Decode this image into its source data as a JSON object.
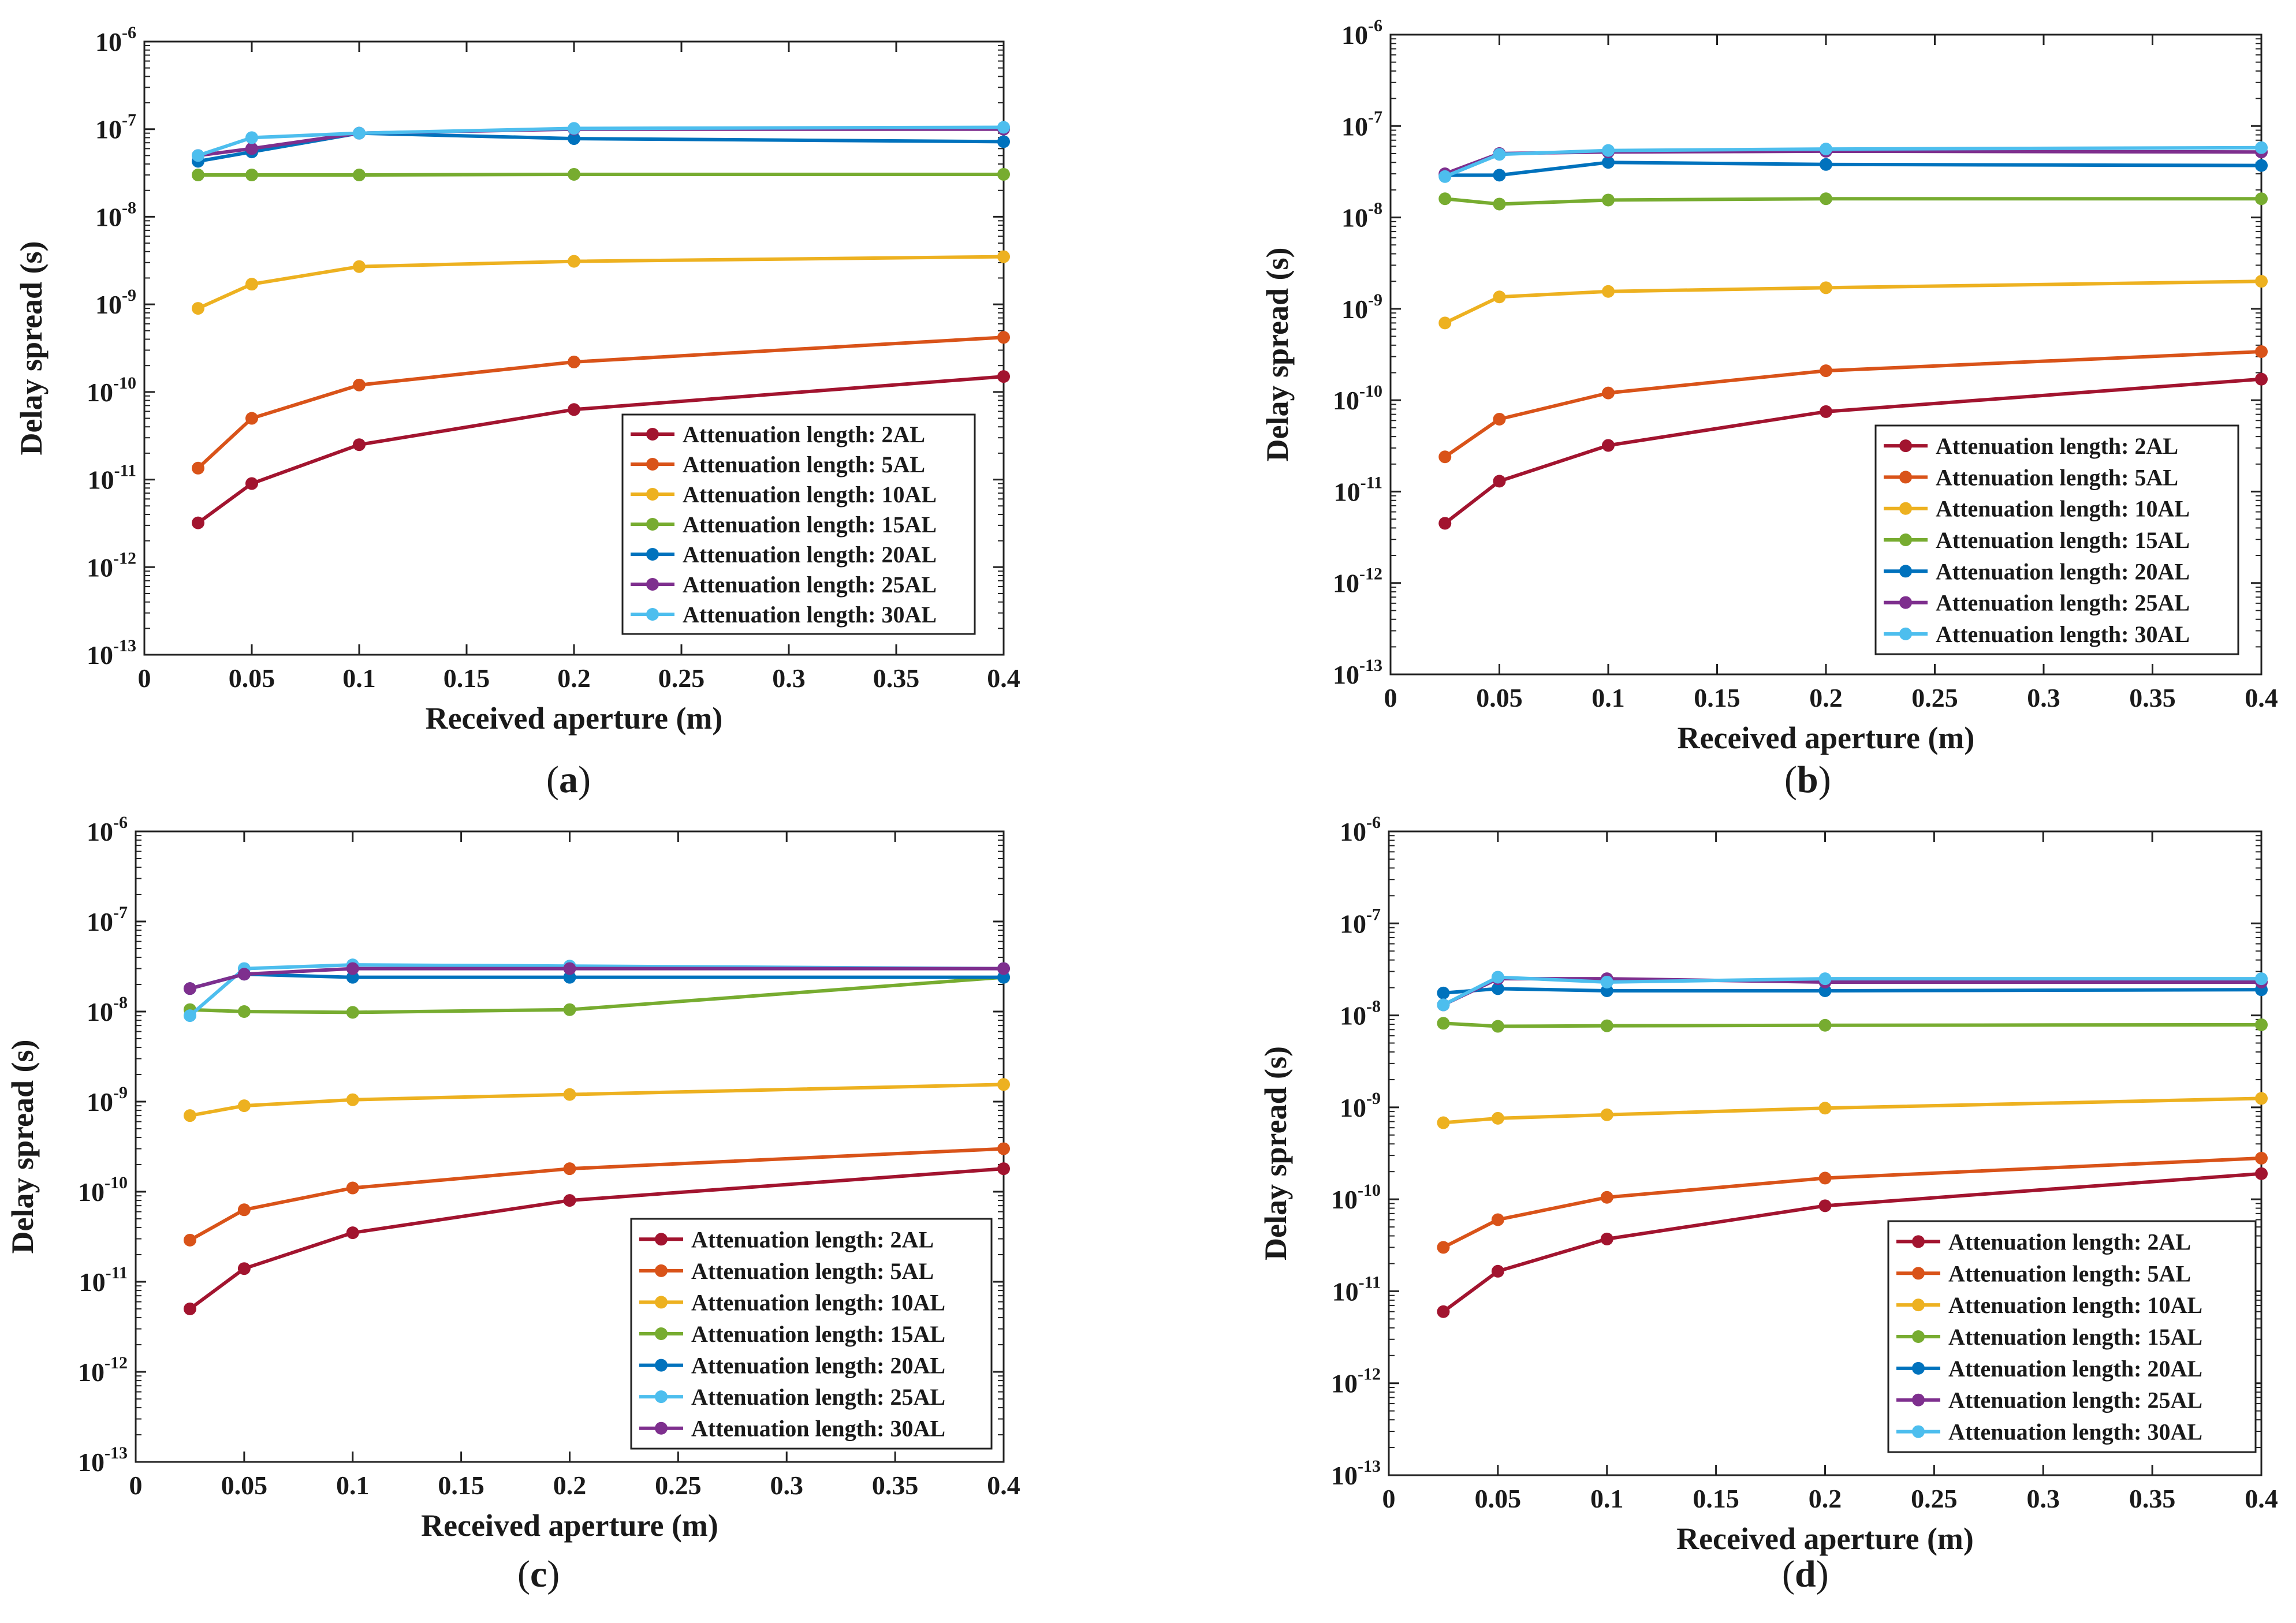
{
  "chart_data": [
    {
      "panel": "a",
      "type": "line",
      "caption": {
        "open": "(",
        "letter": "a",
        "close": ")"
      },
      "xlabel": "Received aperture (m)",
      "ylabel": "Delay spread (s)",
      "yscale": "log",
      "xlim": [
        0,
        0.4
      ],
      "ylim_exp": [
        -13,
        -6
      ],
      "xticks": [
        "0",
        "0.05",
        "0.1",
        "0.15",
        "0.2",
        "0.25",
        "0.3",
        "0.35",
        "0.4"
      ],
      "yticks": {
        "base": "10",
        "exponents": [
          "-13",
          "-12",
          "-11",
          "-10",
          "-9",
          "-8",
          "-7",
          "-6"
        ]
      },
      "legend_position": "lower-right",
      "x": [
        0.025,
        0.05,
        0.1,
        0.2,
        0.4
      ],
      "series": [
        {
          "name": "Attenuation length: 2AL",
          "color": "#A2142F",
          "values": [
            3.2e-12,
            9e-12,
            2.5e-11,
            6.3e-11,
            1.5e-10
          ]
        },
        {
          "name": "Attenuation length: 5AL",
          "color": "#D95319",
          "values": [
            1.35e-11,
            5e-11,
            1.2e-10,
            2.2e-10,
            4.2e-10
          ]
        },
        {
          "name": "Attenuation length: 10AL",
          "color": "#EDB120",
          "values": [
            9e-10,
            1.7e-09,
            2.7e-09,
            3.1e-09,
            3.5e-09
          ]
        },
        {
          "name": "Attenuation length: 15AL",
          "color": "#77AC30",
          "values": [
            3e-08,
            3e-08,
            3e-08,
            3.05e-08,
            3.05e-08
          ]
        },
        {
          "name": "Attenuation length: 20AL",
          "color": "#0072BD",
          "values": [
            4.3e-08,
            5.5e-08,
            9e-08,
            7.8e-08,
            7.2e-08
          ]
        },
        {
          "name": "Attenuation length: 25AL",
          "color": "#7E2F8E",
          "values": [
            5e-08,
            6e-08,
            9e-08,
            1e-07,
            1e-07
          ]
        },
        {
          "name": "Attenuation length: 30AL",
          "color": "#4DBEEE",
          "values": [
            5e-08,
            8e-08,
            9e-08,
            1.02e-07,
            1.05e-07
          ]
        }
      ]
    },
    {
      "panel": "b",
      "type": "line",
      "caption": {
        "open": "(",
        "letter": "b",
        "close": ")"
      },
      "xlabel": "Received aperture (m)",
      "ylabel": "Delay spread (s)",
      "yscale": "log",
      "xlim": [
        0,
        0.4
      ],
      "ylim_exp": [
        -13,
        -6
      ],
      "xticks": [
        "0",
        "0.05",
        "0.1",
        "0.15",
        "0.2",
        "0.25",
        "0.3",
        "0.35",
        "0.4"
      ],
      "yticks": {
        "base": "10",
        "exponents": [
          "-13",
          "-12",
          "-11",
          "-10",
          "-9",
          "-8",
          "-7",
          "-6"
        ]
      },
      "legend_position": "lower-right",
      "x": [
        0.025,
        0.05,
        0.1,
        0.2,
        0.4
      ],
      "series": [
        {
          "name": "Attenuation length: 2AL",
          "color": "#A2142F",
          "values": [
            4.5e-12,
            1.3e-11,
            3.2e-11,
            7.5e-11,
            1.7e-10
          ]
        },
        {
          "name": "Attenuation length: 5AL",
          "color": "#D95319",
          "values": [
            2.4e-11,
            6.2e-11,
            1.2e-10,
            2.1e-10,
            3.4e-10
          ]
        },
        {
          "name": "Attenuation length: 10AL",
          "color": "#EDB120",
          "values": [
            7e-10,
            1.35e-09,
            1.55e-09,
            1.7e-09,
            2e-09
          ]
        },
        {
          "name": "Attenuation length: 15AL",
          "color": "#77AC30",
          "values": [
            1.6e-08,
            1.4e-08,
            1.55e-08,
            1.6e-08,
            1.6e-08
          ]
        },
        {
          "name": "Attenuation length: 20AL",
          "color": "#0072BD",
          "values": [
            2.9e-08,
            2.9e-08,
            4e-08,
            3.8e-08,
            3.7e-08
          ]
        },
        {
          "name": "Attenuation length: 25AL",
          "color": "#7E2F8E",
          "values": [
            3e-08,
            5e-08,
            5.2e-08,
            5.3e-08,
            5.2e-08
          ]
        },
        {
          "name": "Attenuation length: 30AL",
          "color": "#4DBEEE",
          "values": [
            2.8e-08,
            4.9e-08,
            5.4e-08,
            5.6e-08,
            5.8e-08
          ]
        }
      ]
    },
    {
      "panel": "c",
      "type": "line",
      "caption": {
        "open": "(",
        "letter": "c",
        "close": ")"
      },
      "xlabel": "Received aperture (m)",
      "ylabel": "Delay spread (s)",
      "yscale": "log",
      "xlim": [
        0,
        0.4
      ],
      "ylim_exp": [
        -13,
        -6
      ],
      "xticks": [
        "0",
        "0.05",
        "0.1",
        "0.15",
        "0.2",
        "0.25",
        "0.3",
        "0.35",
        "0.4"
      ],
      "yticks": {
        "base": "10",
        "exponents": [
          "-13",
          "-12",
          "-11",
          "-10",
          "-9",
          "-8",
          "-7",
          "-6"
        ]
      },
      "legend_position": "lower-right",
      "x": [
        0.025,
        0.05,
        0.1,
        0.2,
        0.4
      ],
      "series": [
        {
          "name": "Attenuation length: 2AL",
          "color": "#A2142F",
          "values": [
            5e-12,
            1.4e-11,
            3.5e-11,
            8e-11,
            1.8e-10
          ]
        },
        {
          "name": "Attenuation length: 5AL",
          "color": "#D95319",
          "values": [
            2.9e-11,
            6.3e-11,
            1.1e-10,
            1.8e-10,
            3e-10
          ]
        },
        {
          "name": "Attenuation length: 10AL",
          "color": "#EDB120",
          "values": [
            7e-10,
            9e-10,
            1.05e-09,
            1.2e-09,
            1.55e-09
          ]
        },
        {
          "name": "Attenuation length: 15AL",
          "color": "#77AC30",
          "values": [
            1.05e-08,
            1e-08,
            9.8e-09,
            1.05e-08,
            2.4e-08
          ]
        },
        {
          "name": "Attenuation length: 20AL",
          "color": "#0072BD",
          "values": [
            1.8e-08,
            2.6e-08,
            2.4e-08,
            2.4e-08,
            2.4e-08
          ]
        },
        {
          "name": "Attenuation length: 25AL",
          "color": "#4DBEEE",
          "values": [
            9e-09,
            3e-08,
            3.3e-08,
            3.2e-08,
            3e-08
          ]
        },
        {
          "name": "Attenuation length: 30AL",
          "color": "#7E2F8E",
          "values": [
            1.8e-08,
            2.6e-08,
            3e-08,
            3e-08,
            3e-08
          ]
        }
      ]
    },
    {
      "panel": "d",
      "type": "line",
      "caption": {
        "open": "(",
        "letter": "d",
        "close": ")"
      },
      "xlabel": "Received aperture (m)",
      "ylabel": "Delay spread (s)",
      "yscale": "log",
      "xlim": [
        0,
        0.4
      ],
      "ylim_exp": [
        -13,
        -6
      ],
      "xticks": [
        "0",
        "0.05",
        "0.1",
        "0.15",
        "0.2",
        "0.25",
        "0.3",
        "0.35",
        "0.4"
      ],
      "yticks": {
        "base": "10",
        "exponents": [
          "-13",
          "-12",
          "-11",
          "-10",
          "-9",
          "-8",
          "-7",
          "-6"
        ]
      },
      "legend_position": "lower-right",
      "x": [
        0.025,
        0.05,
        0.1,
        0.2,
        0.4
      ],
      "series": [
        {
          "name": "Attenuation length: 2AL",
          "color": "#A2142F",
          "values": [
            6e-12,
            1.65e-11,
            3.7e-11,
            8.5e-11,
            1.9e-10
          ]
        },
        {
          "name": "Attenuation length: 5AL",
          "color": "#D95319",
          "values": [
            3e-11,
            6e-11,
            1.05e-10,
            1.7e-10,
            2.8e-10
          ]
        },
        {
          "name": "Attenuation length: 10AL",
          "color": "#EDB120",
          "values": [
            6.8e-10,
            7.6e-10,
            8.3e-10,
            9.8e-10,
            1.25e-09
          ]
        },
        {
          "name": "Attenuation length: 15AL",
          "color": "#77AC30",
          "values": [
            8.2e-09,
            7.6e-09,
            7.7e-09,
            7.8e-09,
            7.9e-09
          ]
        },
        {
          "name": "Attenuation length: 20AL",
          "color": "#0072BD",
          "values": [
            1.75e-08,
            1.95e-08,
            1.85e-08,
            1.85e-08,
            1.9e-08
          ]
        },
        {
          "name": "Attenuation length: 25AL",
          "color": "#7E2F8E",
          "values": [
            1.3e-08,
            2.5e-08,
            2.5e-08,
            2.3e-08,
            2.3e-08
          ]
        },
        {
          "name": "Attenuation length: 30AL",
          "color": "#4DBEEE",
          "values": [
            1.3e-08,
            2.6e-08,
            2.3e-08,
            2.5e-08,
            2.5e-08
          ]
        }
      ]
    }
  ]
}
